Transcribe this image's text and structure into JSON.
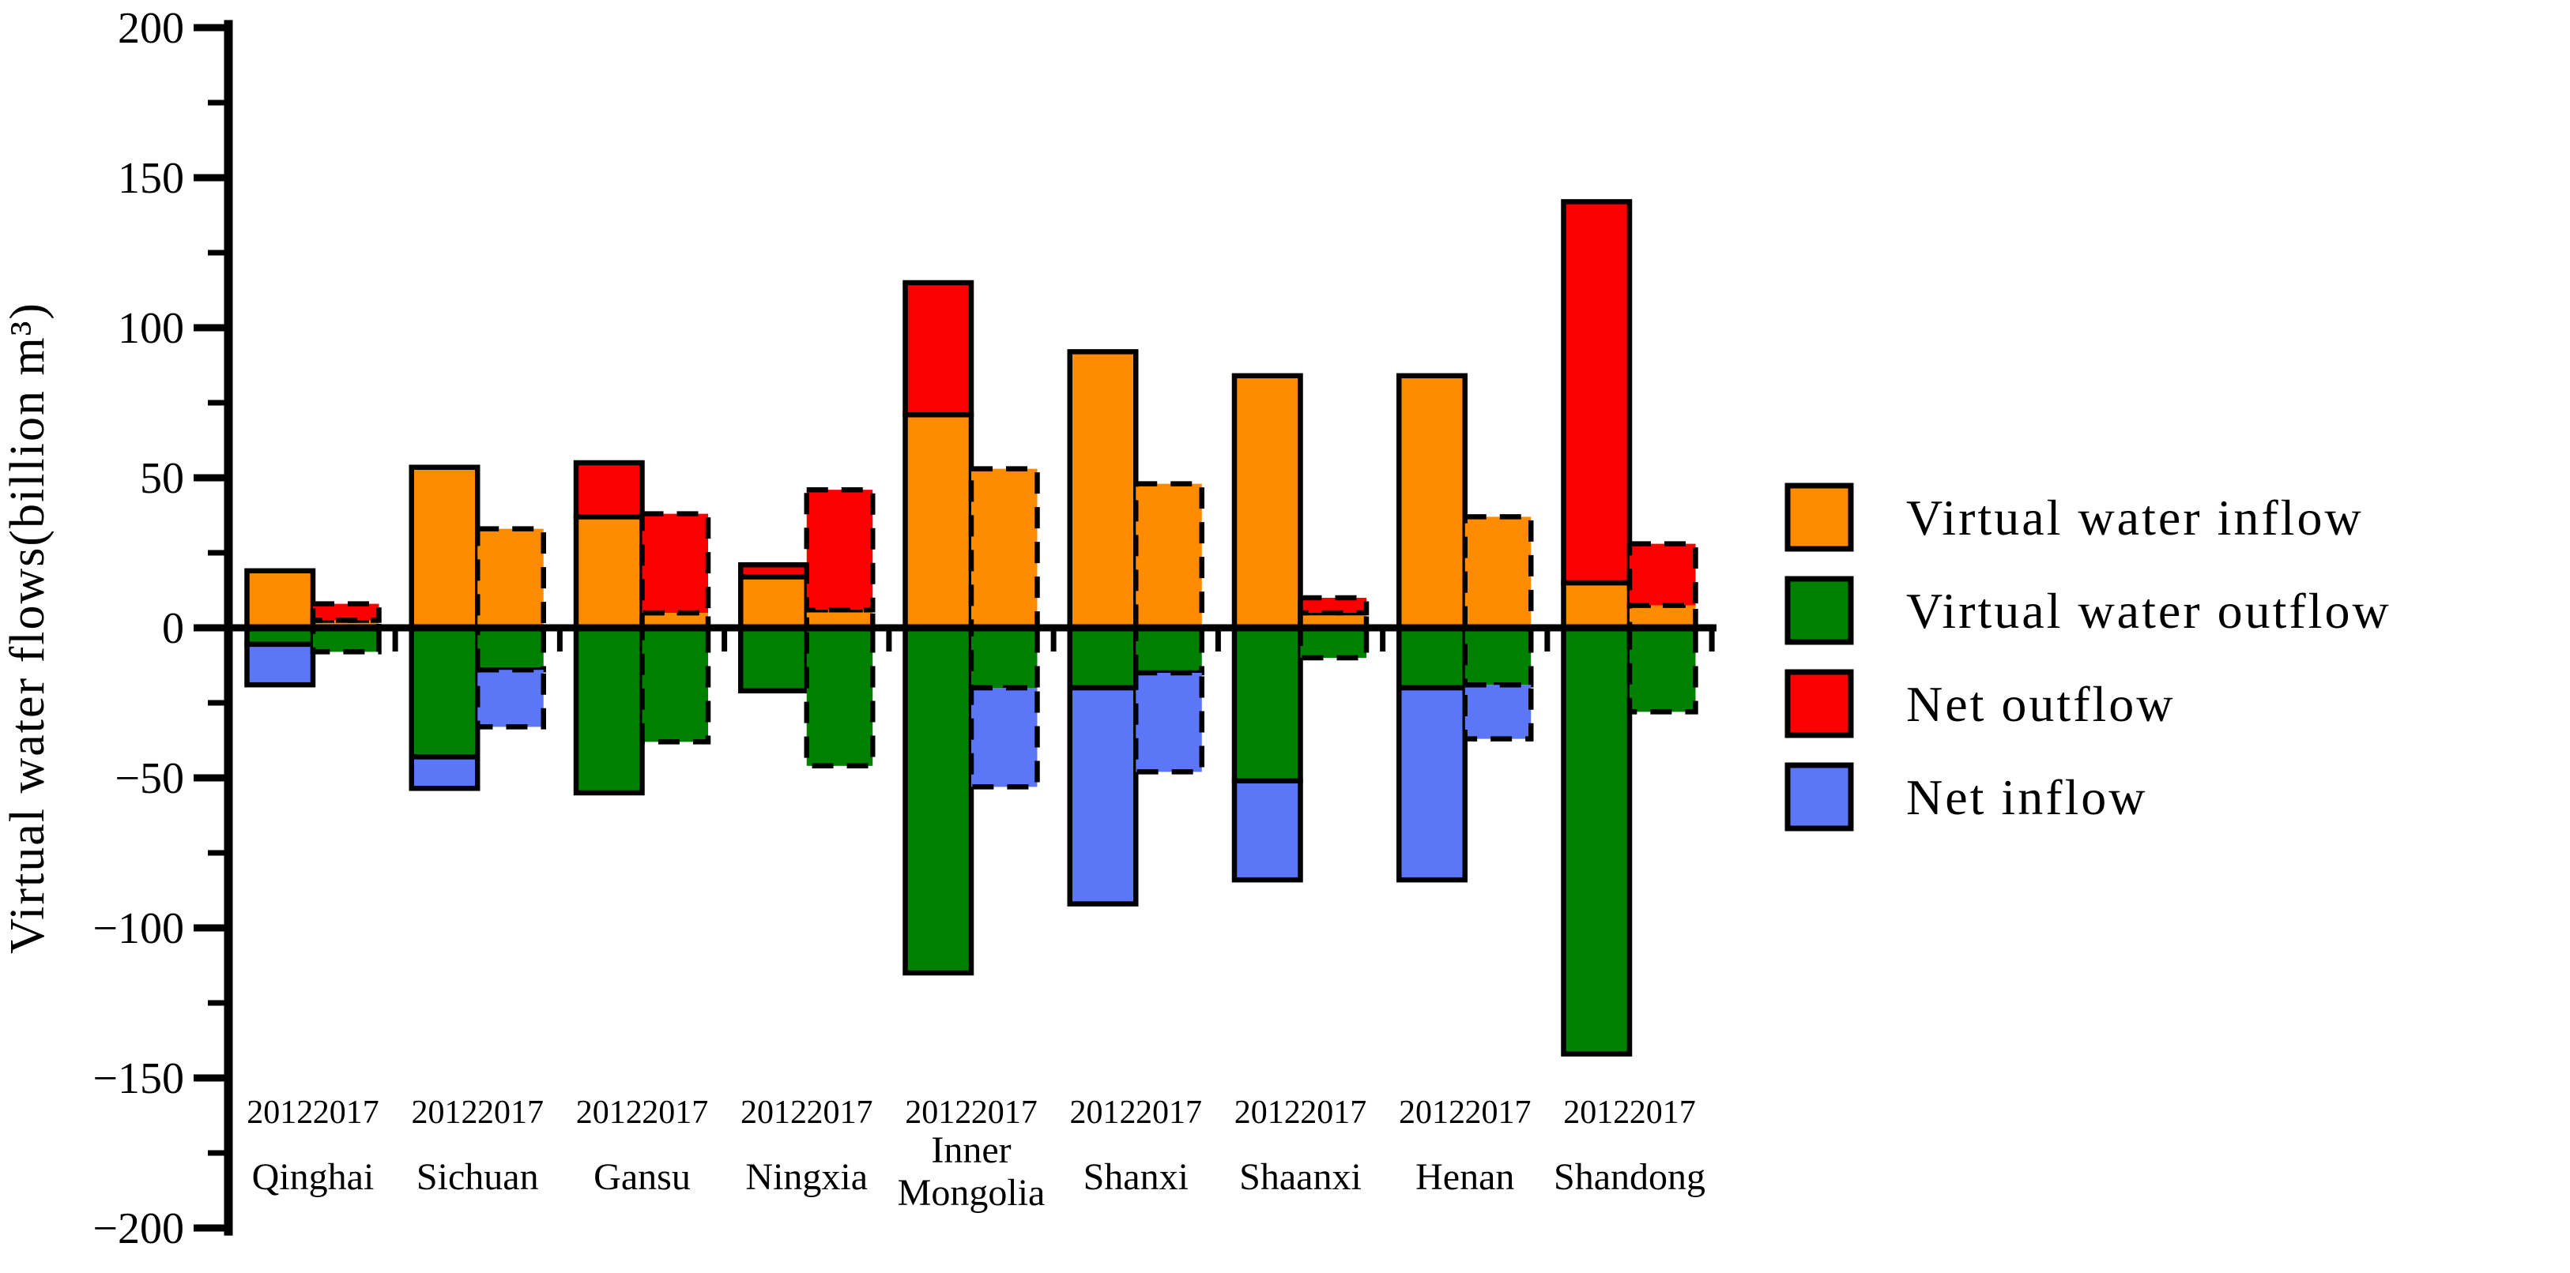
{
  "colors": {
    "inflow": "#ff8c00",
    "outflow": "#008000",
    "net_outflow": "#fb0000",
    "net_inflow": "#5b76f7",
    "axis": "#000000",
    "background": "#ffffff"
  },
  "y_axis": {
    "label": "Virtual water flows(billion m³)",
    "tick_labels": [
      "200",
      "150",
      "100",
      "50",
      "0",
      "−50",
      "−100",
      "−150",
      "−200"
    ],
    "tick_values": [
      200,
      150,
      100,
      50,
      0,
      -50,
      -100,
      -150,
      -200
    ],
    "minor_tick_values": [
      175,
      125,
      75,
      25,
      -25,
      -75,
      -125,
      -175
    ]
  },
  "legend": [
    {
      "label": "Virtual water inflow",
      "color_key": "inflow"
    },
    {
      "label": "Virtual water outflow",
      "color_key": "outflow"
    },
    {
      "label": "Net outflow",
      "color_key": "net_outflow"
    },
    {
      "label": "Net inflow",
      "color_key": "net_inflow"
    }
  ],
  "chart_data": {
    "type": "bar",
    "title": "",
    "xlabel": "",
    "ylabel": "Virtual water flows(billion m³)",
    "unit": "billion m³",
    "ylim": [
      -200,
      200
    ],
    "grid": false,
    "legend_position": "right",
    "year_labels": [
      "2012",
      "2017"
    ],
    "bar_style_by_year": {
      "2012": "solid-outline",
      "2017": "dashed-outline"
    },
    "sign_convention": "inflow plotted upward (orange, topped by red net outflow when outflow>inflow); outflow plotted downward (green, extended by blue net inflow when inflow>outflow); net = inflow − outflow",
    "provinces": [
      {
        "name": "Qinghai",
        "label_lines": [
          "Qinghai"
        ],
        "years": [
          {
            "year": "2012",
            "inflow": 19,
            "outflow": 5.5,
            "net": 13.5
          },
          {
            "year": "2017",
            "inflow": 2.5,
            "outflow": 8,
            "net": -5.5
          }
        ]
      },
      {
        "name": "Sichuan",
        "label_lines": [
          "Sichuan"
        ],
        "years": [
          {
            "year": "2012",
            "inflow": 53.5,
            "outflow": 43,
            "net": 10.5
          },
          {
            "year": "2017",
            "inflow": 33,
            "outflow": 14,
            "net": 19
          }
        ]
      },
      {
        "name": "Gansu",
        "label_lines": [
          "Gansu"
        ],
        "years": [
          {
            "year": "2012",
            "inflow": 37,
            "outflow": 55,
            "net": -18
          },
          {
            "year": "2017",
            "inflow": 5,
            "outflow": 38,
            "net": -33
          }
        ]
      },
      {
        "name": "Ningxia",
        "label_lines": [
          "Ningxia"
        ],
        "years": [
          {
            "year": "2012",
            "inflow": 17,
            "outflow": 21,
            "net": -4
          },
          {
            "year": "2017",
            "inflow": 6,
            "outflow": 46,
            "net": -40
          }
        ]
      },
      {
        "name": "Inner Mongolia",
        "label_lines": [
          "Inner",
          "Mongolia"
        ],
        "years": [
          {
            "year": "2012",
            "inflow": 71,
            "outflow": 115,
            "net": -44
          },
          {
            "year": "2017",
            "inflow": 53,
            "outflow": 20,
            "net": 33
          }
        ]
      },
      {
        "name": "Shanxi",
        "label_lines": [
          "Shanxi"
        ],
        "years": [
          {
            "year": "2012",
            "inflow": 92,
            "outflow": 20,
            "net": 72
          },
          {
            "year": "2017",
            "inflow": 48,
            "outflow": 15,
            "net": 33
          }
        ]
      },
      {
        "name": "Shaanxi",
        "label_lines": [
          "Shaanxi"
        ],
        "years": [
          {
            "year": "2012",
            "inflow": 84,
            "outflow": 51,
            "net": 33
          },
          {
            "year": "2017",
            "inflow": 5,
            "outflow": 10,
            "net": -5
          }
        ]
      },
      {
        "name": "Henan",
        "label_lines": [
          "Henan"
        ],
        "years": [
          {
            "year": "2012",
            "inflow": 84,
            "outflow": 20,
            "net": 64
          },
          {
            "year": "2017",
            "inflow": 37,
            "outflow": 19,
            "net": 18
          }
        ]
      },
      {
        "name": "Shandong",
        "label_lines": [
          "Shandong"
        ],
        "years": [
          {
            "year": "2012",
            "inflow": 15,
            "outflow": 142,
            "net": -127
          },
          {
            "year": "2017",
            "inflow": 7.5,
            "outflow": 28,
            "net": -20.5
          }
        ]
      }
    ]
  }
}
